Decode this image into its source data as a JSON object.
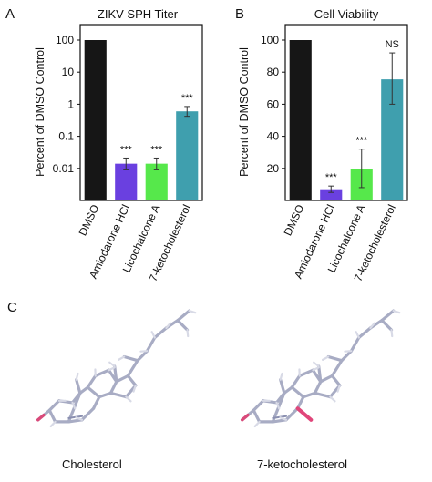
{
  "panel_letters": [
    "A",
    "B",
    "C"
  ],
  "chart_data": [
    {
      "type": "bar",
      "title": "ZIKV SPH Titer",
      "ylabel": "Percent of DMSO Control",
      "xlabel": "",
      "scale": "log",
      "ylim": [
        0.001,
        200
      ],
      "yticks": [
        100,
        10,
        1,
        0.1,
        0.01
      ],
      "ytick_labels": [
        "100",
        "10",
        "1",
        "0.1",
        "0.01"
      ],
      "grid": false,
      "categories": [
        "DMSO",
        "Amiodarone HCl",
        "Licochalcone A",
        "7-ketocholesterol"
      ],
      "values": [
        100,
        0.014,
        0.014,
        0.6
      ],
      "error_low": [
        100,
        0.009,
        0.009,
        0.42
      ],
      "error_high": [
        100,
        0.021,
        0.021,
        0.85
      ],
      "bar_colors": [
        "#161616",
        "#6a40e0",
        "#56e84b",
        "#3f9fae"
      ],
      "significance": [
        "",
        "***",
        "***",
        "***"
      ]
    },
    {
      "type": "bar",
      "title": "Cell Viability",
      "ylabel": "Percent of DMSO Control",
      "xlabel": "",
      "scale": "linear",
      "ylim": [
        0,
        105
      ],
      "yticks": [
        100,
        80,
        60,
        40,
        20
      ],
      "ytick_labels": [
        "100",
        "80",
        "60",
        "40",
        "20"
      ],
      "grid": false,
      "categories": [
        "DMSO",
        "Amiodarone HCl",
        "Licochalcone A",
        "7-ketocholesterol"
      ],
      "values": [
        100,
        7,
        19.5,
        75.5
      ],
      "error_low": [
        100,
        5,
        8,
        60
      ],
      "error_high": [
        100,
        9,
        32,
        92
      ],
      "bar_colors": [
        "#161616",
        "#6a40e0",
        "#56e84b",
        "#3f9fae"
      ],
      "significance": [
        "",
        "***",
        "***",
        "NS"
      ]
    }
  ],
  "structures": [
    {
      "caption": "Cholesterol",
      "ketone": false
    },
    {
      "caption": "7-ketocholesterol",
      "ketone": true
    }
  ]
}
